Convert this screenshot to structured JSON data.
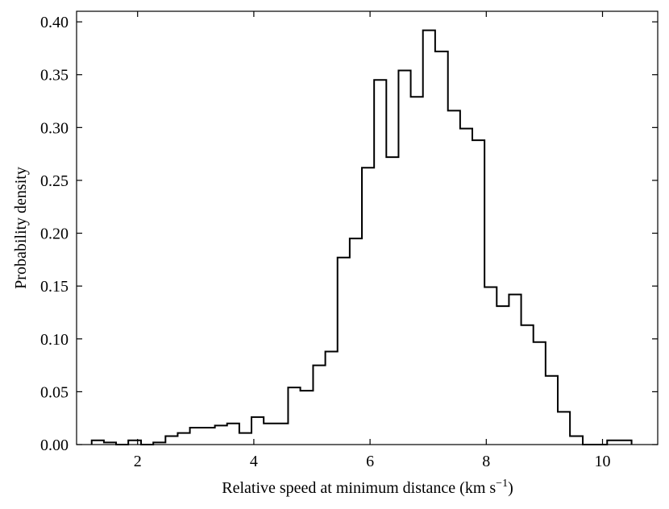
{
  "chart_data": {
    "type": "histogram",
    "title": "",
    "xlabel": "Relative speed at minimum distance (km s",
    "xlabel_superscript": "−1",
    "xlabel_close": ")",
    "ylabel": "Probability density",
    "xlim": [
      0.95,
      10.95
    ],
    "ylim": [
      0.0,
      0.41
    ],
    "xticks": [
      2,
      4,
      6,
      8,
      10
    ],
    "yticks": [
      0.0,
      0.05,
      0.1,
      0.15,
      0.2,
      0.25,
      0.3,
      0.35,
      0.4
    ],
    "ytick_labels": [
      "0.00",
      "0.05",
      "0.10",
      "0.15",
      "0.20",
      "0.25",
      "0.30",
      "0.35",
      "0.40"
    ],
    "xtick_labels": [
      "2",
      "4",
      "6",
      "8",
      "10"
    ],
    "bin_edges": [
      1.21,
      1.42,
      1.63,
      1.84,
      2.06,
      2.27,
      2.48,
      2.69,
      2.9,
      3.11,
      3.33,
      3.54,
      3.75,
      3.96,
      4.17,
      4.38,
      4.59,
      4.8,
      5.02,
      5.23,
      5.44,
      5.65,
      5.86,
      6.07,
      6.28,
      6.49,
      6.7,
      6.91,
      7.12,
      7.34,
      7.55,
      7.76,
      7.97,
      8.18,
      8.39,
      8.6,
      8.81,
      9.02,
      9.23,
      9.44,
      9.66,
      9.87,
      10.08,
      10.29,
      10.5
    ],
    "values": [
      0.004,
      0.002,
      0.0,
      0.004,
      0.0,
      0.002,
      0.008,
      0.011,
      0.016,
      0.016,
      0.018,
      0.02,
      0.011,
      0.026,
      0.02,
      0.02,
      0.054,
      0.051,
      0.075,
      0.088,
      0.177,
      0.195,
      0.262,
      0.345,
      0.272,
      0.354,
      0.329,
      0.392,
      0.372,
      0.316,
      0.299,
      0.288,
      0.149,
      0.131,
      0.142,
      0.113,
      0.097,
      0.065,
      0.031,
      0.008,
      0.0,
      0.0,
      0.004,
      0.004
    ],
    "style": {
      "line_color": "#000000",
      "fill": "none"
    }
  }
}
